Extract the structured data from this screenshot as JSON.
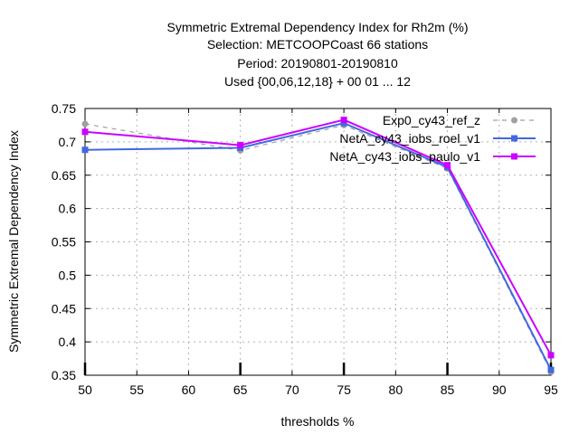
{
  "chart_data": {
    "type": "line",
    "title_lines": [
      "Symmetric Extremal Dependency Index  for Rh2m (%)",
      "Selection: METCOOPCoast     66 stations",
      "Period: 20190801-20190810",
      "Used {00,06,12,18} + 00 01 ... 12"
    ],
    "xlabel": "thresholds %",
    "ylabel": "Symmetric Extremal Dependency Index",
    "xlim": [
      50,
      95
    ],
    "ylim": [
      0.35,
      0.75
    ],
    "x_ticks": [
      50,
      55,
      60,
      65,
      70,
      75,
      80,
      85,
      90,
      95
    ],
    "x_tick_labels": [
      "50",
      "55",
      "60",
      "65",
      "70",
      "75",
      "80",
      "85",
      "90",
      "95"
    ],
    "y_ticks": [
      0.35,
      0.4,
      0.45,
      0.5,
      0.55,
      0.6,
      0.65,
      0.7,
      0.75
    ],
    "y_tick_labels": [
      "0.35",
      "0.4",
      "0.45",
      "0.5",
      "0.55",
      "0.6",
      "0.65",
      "0.7",
      "0.75"
    ],
    "x_major_marks": [
      50,
      65,
      75,
      85,
      95
    ],
    "grid": true,
    "legend_position": "top-right",
    "series": [
      {
        "name": "Exp0_cy43_ref_z",
        "color": "#a0a0a0",
        "dashed": true,
        "marker": "circle",
        "x": [
          50,
          65,
          75,
          85,
          95
        ],
        "y": [
          0.727,
          0.687,
          0.725,
          0.66,
          0.355
        ]
      },
      {
        "name": "NetA_cy43_iobs_roel_v1",
        "color": "#4169e1",
        "dashed": false,
        "marker": "square",
        "x": [
          50,
          65,
          75,
          85,
          95
        ],
        "y": [
          0.688,
          0.691,
          0.728,
          0.662,
          0.358
        ]
      },
      {
        "name": "NetA_cy43_iobs_paulo_v1",
        "color": "#cc00ff",
        "dashed": false,
        "marker": "square",
        "x": [
          50,
          65,
          75,
          85,
          95
        ],
        "y": [
          0.715,
          0.695,
          0.733,
          0.665,
          0.38
        ]
      }
    ]
  }
}
